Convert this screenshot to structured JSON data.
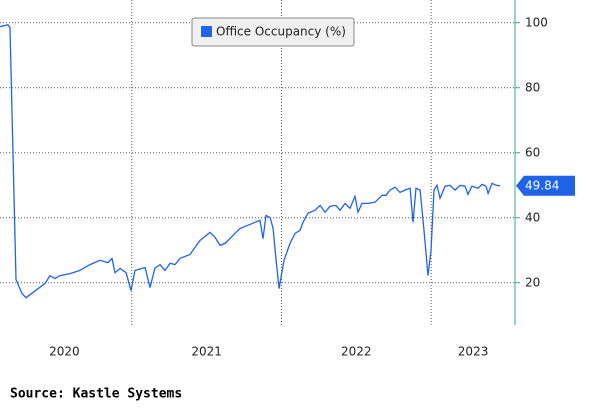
{
  "chart_data": {
    "type": "line",
    "source": "Source: Kastle Systems",
    "xlim": [
      2020.12,
      2023.56
    ],
    "ylim": [
      7,
      107
    ],
    "yticks": [
      20,
      40,
      60,
      80,
      100
    ],
    "xticks": [
      {
        "value": 2020.55,
        "label": "2020"
      },
      {
        "value": 2021.5,
        "label": "2021"
      },
      {
        "value": 2022.5,
        "label": "2022"
      },
      {
        "value": 2023.28,
        "label": "2023"
      }
    ],
    "xgrid": [
      2021,
      2022,
      2023
    ],
    "grid": true,
    "axis_color": "#2bae9a",
    "legend": "top",
    "x": [
      2020.12,
      2020.173,
      2020.187,
      2020.227,
      2020.267,
      2020.294,
      2020.421,
      2020.454,
      2020.487,
      2020.521,
      2020.588,
      2020.654,
      2020.721,
      2020.788,
      2020.841,
      2020.868,
      2020.888,
      2020.922,
      2020.962,
      2020.995,
      2021.022,
      2021.089,
      2021.122,
      2021.155,
      2021.189,
      2021.222,
      2021.256,
      2021.289,
      2021.322,
      2021.389,
      2021.423,
      2021.456,
      2021.523,
      2021.556,
      2021.59,
      2021.623,
      2021.656,
      2021.69,
      2021.723,
      2021.777,
      2021.823,
      2021.857,
      2021.877,
      2021.897,
      2021.924,
      2021.944,
      2021.964,
      2021.984,
      2022.017,
      2022.057,
      2022.091,
      2022.124,
      2022.144,
      2022.177,
      2022.224,
      2022.258,
      2022.291,
      2022.324,
      2022.364,
      2022.391,
      2022.425,
      2022.458,
      2022.491,
      2022.511,
      2022.538,
      2022.578,
      2022.625,
      2022.672,
      2022.698,
      2022.725,
      2022.759,
      2022.792,
      2022.825,
      2022.859,
      2022.879,
      2022.899,
      2022.926,
      2022.952,
      2022.979,
      2022.999,
      2023.019,
      2023.039,
      2023.059,
      2023.093,
      2023.126,
      2023.159,
      2023.193,
      2023.226,
      2023.246,
      2023.273,
      2023.313,
      2023.34,
      2023.366,
      2023.38,
      2023.407,
      2023.433,
      2023.46
    ],
    "series": [
      {
        "name": "Office Occupancy (%)",
        "color": "#1f63e6",
        "values": [
          98.8,
          99.4,
          98.5,
          21,
          16.7,
          15.4,
          19.8,
          22.2,
          21.3,
          22.2,
          22.8,
          23.8,
          25.6,
          26.9,
          26.2,
          27.5,
          23.1,
          24.4,
          23.1,
          17.6,
          23.8,
          24.7,
          18.5,
          24.4,
          25.6,
          23.8,
          26,
          25.6,
          27.5,
          28.7,
          30.9,
          33,
          35.5,
          34,
          31.5,
          32.1,
          33.6,
          35.2,
          36.7,
          37.7,
          38.6,
          39.2,
          33.6,
          40.7,
          40.1,
          36.7,
          26.9,
          18.2,
          26.9,
          32.1,
          35.2,
          36.1,
          38.6,
          41.4,
          42.3,
          43.8,
          41.7,
          43.5,
          43.8,
          42.3,
          44.4,
          42.9,
          46.6,
          41.7,
          44.4,
          44.4,
          44.8,
          46.9,
          46.9,
          48.5,
          49.4,
          47.8,
          48.5,
          49.1,
          38.6,
          49.1,
          48.5,
          36.1,
          22.2,
          29.9,
          48.5,
          50,
          46,
          49.7,
          50,
          48.5,
          50,
          49.7,
          47.2,
          49.7,
          49.1,
          50.3,
          49.7,
          47.5,
          50.6,
          50,
          49.84
        ]
      }
    ]
  }
}
